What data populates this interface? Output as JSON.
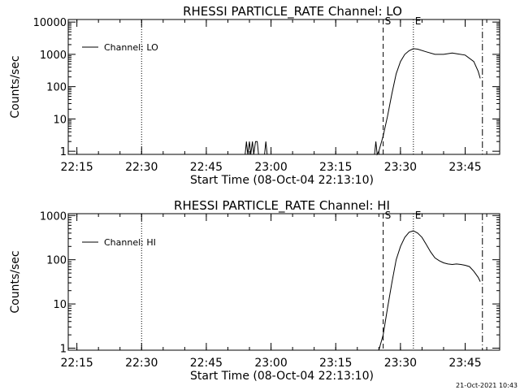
{
  "footer": {
    "timestamp": "21-Oct-2021 10:43"
  },
  "chart_data": [
    {
      "type": "line",
      "title": "RHESSI PARTICLE_RATE Channel: LO",
      "xlabel": "Start Time (08-Oct-04 22:13:10)",
      "ylabel": "Counts/sec",
      "x_unit": "HH:MM on 08-Oct-04",
      "x_range": [
        "22:13",
        "23:53"
      ],
      "x_ticks": [
        "22:15",
        "22:30",
        "22:45",
        "23:00",
        "23:15",
        "23:30",
        "23:45"
      ],
      "y_scale": "log",
      "y_range": [
        0.8,
        12000
      ],
      "y_ticks": [
        "1",
        "10",
        "100",
        "1000",
        "10000"
      ],
      "legend": {
        "entries": [
          "Channel: LO"
        ],
        "placement": "top-left"
      },
      "markers": [
        {
          "x": "22:30",
          "style": "dotted",
          "label": ""
        },
        {
          "x": "23:26",
          "style": "dashed",
          "label": "S"
        },
        {
          "x": "23:33",
          "style": "dotted",
          "label": "E"
        },
        {
          "x": "23:49",
          "style": "dash-dot",
          "label": ""
        }
      ],
      "series": [
        {
          "name": "Channel: LO",
          "points": [
            [
              "22:54",
              0.8
            ],
            [
              "22:54.3",
              2
            ],
            [
              "22:54.6",
              0.8
            ],
            [
              "22:55",
              2
            ],
            [
              "22:55.3",
              0.8
            ],
            [
              "22:55.7",
              2
            ],
            [
              "22:56",
              0.8
            ],
            [
              "22:56.4",
              2
            ],
            [
              "22:56.8",
              2
            ],
            [
              "22:57.1",
              0.8
            ],
            [
              "22:58.5",
              0.8
            ],
            [
              "22:58.8",
              2
            ],
            [
              "22:59.1",
              0.8
            ],
            [
              "23:24",
              0.8
            ],
            [
              "23:24.3",
              2
            ],
            [
              "23:24.6",
              0.8
            ],
            [
              "23:25",
              1
            ],
            [
              "23:26",
              3
            ],
            [
              "23:27",
              12
            ],
            [
              "23:28",
              60
            ],
            [
              "23:29",
              250
            ],
            [
              "23:30",
              600
            ],
            [
              "23:31",
              1000
            ],
            [
              "23:32",
              1300
            ],
            [
              "23:33",
              1500
            ],
            [
              "23:34",
              1450
            ],
            [
              "23:36",
              1200
            ],
            [
              "23:38",
              1000
            ],
            [
              "23:40",
              1000
            ],
            [
              "23:42",
              1100
            ],
            [
              "23:43",
              1050
            ],
            [
              "23:45",
              950
            ],
            [
              "23:47",
              600
            ],
            [
              "23:48",
              300
            ],
            [
              "23:48.5",
              180
            ]
          ]
        }
      ]
    },
    {
      "type": "line",
      "title": "RHESSI PARTICLE_RATE Channel: HI",
      "xlabel": "Start Time (08-Oct-04 22:13:10)",
      "ylabel": "Counts/sec",
      "x_unit": "HH:MM on 08-Oct-04",
      "x_range": [
        "22:13",
        "23:53"
      ],
      "x_ticks": [
        "22:15",
        "22:30",
        "22:45",
        "23:00",
        "23:15",
        "23:30",
        "23:45"
      ],
      "y_scale": "log",
      "y_range": [
        0.9,
        1100
      ],
      "y_ticks": [
        "1",
        "10",
        "100",
        "1000"
      ],
      "legend": {
        "entries": [
          "Channel: HI"
        ],
        "placement": "top-left"
      },
      "markers": [
        {
          "x": "22:30",
          "style": "dotted",
          "label": ""
        },
        {
          "x": "23:26",
          "style": "dashed",
          "label": "S"
        },
        {
          "x": "23:33",
          "style": "dotted",
          "label": "E"
        },
        {
          "x": "23:49",
          "style": "dash-dot",
          "label": ""
        }
      ],
      "series": [
        {
          "name": "Channel: HI",
          "points": [
            [
              "23:25",
              0.9
            ],
            [
              "23:26",
              2
            ],
            [
              "23:27",
              8
            ],
            [
              "23:28",
              30
            ],
            [
              "23:29",
              100
            ],
            [
              "23:30",
              200
            ],
            [
              "23:31",
              320
            ],
            [
              "23:32",
              420
            ],
            [
              "23:33",
              450
            ],
            [
              "23:34",
              400
            ],
            [
              "23:35",
              320
            ],
            [
              "23:36",
              220
            ],
            [
              "23:37",
              150
            ],
            [
              "23:38",
              110
            ],
            [
              "23:39",
              95
            ],
            [
              "23:40",
              85
            ],
            [
              "23:41",
              80
            ],
            [
              "23:42",
              78
            ],
            [
              "23:43",
              80
            ],
            [
              "23:44",
              78
            ],
            [
              "23:45",
              75
            ],
            [
              "23:46",
              70
            ],
            [
              "23:47",
              55
            ],
            [
              "23:48",
              40
            ],
            [
              "23:48.5",
              32
            ]
          ]
        }
      ]
    }
  ]
}
